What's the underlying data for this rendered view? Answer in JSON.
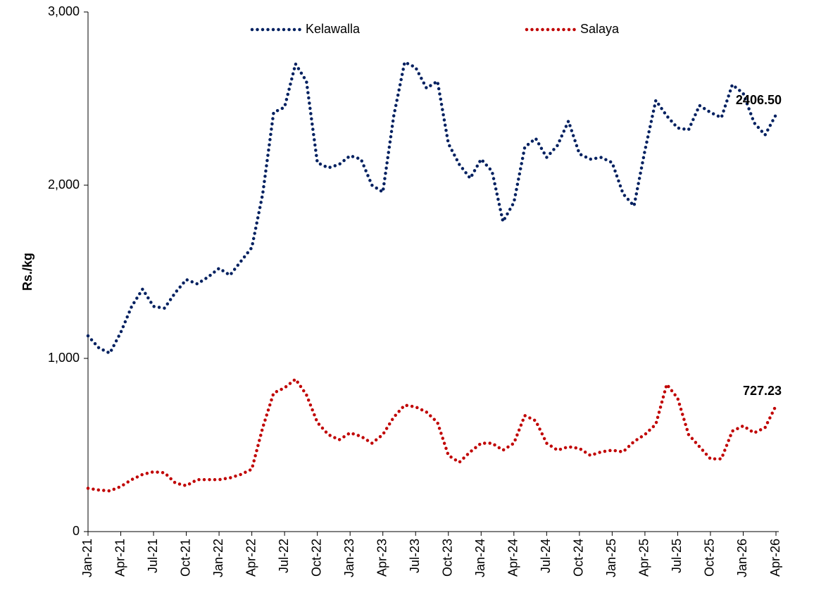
{
  "chart_data": {
    "type": "line",
    "y_label": "Rs./kg",
    "categories": [
      "Jan-21",
      null,
      null,
      "Apr-21",
      null,
      null,
      "Jul-21",
      null,
      null,
      "Oct-21",
      null,
      null,
      "Jan-22",
      null,
      null,
      "Apr-22",
      null,
      null,
      "Jul-22",
      null,
      null,
      "Oct-22",
      null,
      null,
      "Jan-23",
      null,
      null,
      "Apr-23",
      null,
      null,
      "Jul-23",
      null,
      null,
      "Oct-23",
      null,
      null,
      "Jan-24",
      null,
      null,
      "Apr-24",
      null,
      null,
      "Jul-24",
      null,
      null,
      "Oct-24",
      null,
      null,
      "Jan-25",
      null,
      null,
      "Apr-25",
      null,
      null,
      "Jul-25",
      null,
      null,
      "Oct-25",
      null,
      null,
      "Jan-26",
      null,
      null,
      "Apr-26"
    ],
    "series": [
      {
        "name": "Kelawalla",
        "color": "#002060",
        "values": [
          1130,
          1060,
          1030,
          1150,
          1300,
          1400,
          1300,
          1290,
          1380,
          1455,
          1430,
          1470,
          1520,
          1480,
          1560,
          1640,
          1950,
          2420,
          2450,
          2700,
          2600,
          2130,
          2100,
          2120,
          2170,
          2150,
          2000,
          1960,
          2400,
          2710,
          2680,
          2560,
          2600,
          2240,
          2120,
          2040,
          2150,
          2080,
          1790,
          1900,
          2220,
          2270,
          2160,
          2230,
          2370,
          2180,
          2150,
          2160,
          2130,
          1950,
          1880,
          2200,
          2490,
          2400,
          2330,
          2320,
          2460,
          2420,
          2390,
          2580,
          2530,
          2360,
          2290,
          2406.5
        ],
        "value_labels": [
          null,
          null,
          null,
          null,
          null,
          null,
          null,
          null,
          null,
          null,
          null,
          null,
          null,
          null,
          null,
          null,
          null,
          null,
          null,
          null,
          null,
          null,
          null,
          null,
          null,
          null,
          null,
          null,
          null,
          null,
          null,
          null,
          null,
          null,
          null,
          null,
          null,
          null,
          null,
          null,
          null,
          null,
          null,
          null,
          null,
          null,
          null,
          null,
          null,
          null,
          null,
          null,
          null,
          null,
          null,
          null,
          null,
          null,
          null,
          null,
          null,
          null,
          null,
          "2406.50"
        ]
      },
      {
        "name": "Salaya",
        "color": "#c00000",
        "values": [
          250,
          240,
          235,
          260,
          300,
          330,
          345,
          340,
          280,
          265,
          300,
          300,
          300,
          310,
          330,
          360,
          600,
          800,
          830,
          880,
          790,
          630,
          560,
          530,
          570,
          550,
          510,
          560,
          660,
          730,
          720,
          690,
          630,
          440,
          400,
          460,
          510,
          510,
          470,
          510,
          670,
          640,
          510,
          470,
          490,
          480,
          440,
          460,
          470,
          460,
          520,
          560,
          620,
          850,
          770,
          560,
          490,
          420,
          420,
          580,
          610,
          570,
          600,
          727.23
        ],
        "value_labels": [
          null,
          null,
          null,
          null,
          null,
          null,
          null,
          null,
          null,
          null,
          null,
          null,
          null,
          null,
          null,
          null,
          null,
          null,
          null,
          null,
          null,
          null,
          null,
          null,
          null,
          null,
          null,
          null,
          null,
          null,
          null,
          null,
          null,
          null,
          null,
          null,
          null,
          null,
          null,
          null,
          null,
          null,
          null,
          null,
          null,
          null,
          null,
          null,
          null,
          null,
          null,
          null,
          null,
          null,
          null,
          null,
          null,
          null,
          null,
          null,
          null,
          null,
          null,
          "727.23"
        ]
      }
    ],
    "ylim": [
      0,
      3000
    ],
    "yticks": [
      0,
      {
        "value": 1000,
        "label": "1,000"
      },
      {
        "value": 2000,
        "label": "2,000"
      },
      {
        "value": 3000,
        "label": "3,000"
      }
    ],
    "grid": false,
    "legend": "top"
  }
}
